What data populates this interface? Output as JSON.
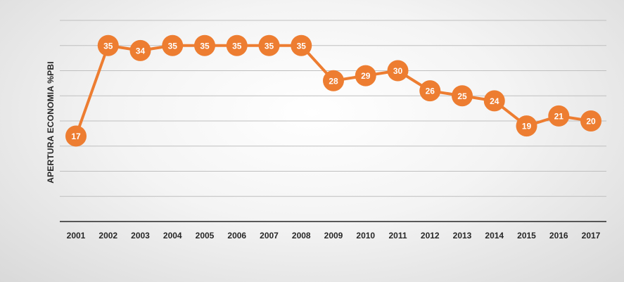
{
  "chart_data": {
    "type": "line",
    "ylabel": "APERTURA ECONOMIA %PBI",
    "x": [
      "2001",
      "2002",
      "2003",
      "2004",
      "2005",
      "2006",
      "2007",
      "2008",
      "2009",
      "2010",
      "2011",
      "2012",
      "2013",
      "2014",
      "2015",
      "2016",
      "2017"
    ],
    "series": [
      {
        "values": [
          17,
          35,
          34,
          35,
          35,
          35,
          35,
          35,
          28,
          29,
          30,
          26,
          25,
          24,
          19,
          21,
          20
        ]
      }
    ],
    "ylim": [
      0,
      40
    ],
    "grid": true,
    "legend": "none",
    "colors": {
      "line": "#ed7d31",
      "marker": "#ed7d31",
      "label": "#ffffff",
      "grid": "#bfbfbf",
      "axis": "#262626"
    }
  }
}
